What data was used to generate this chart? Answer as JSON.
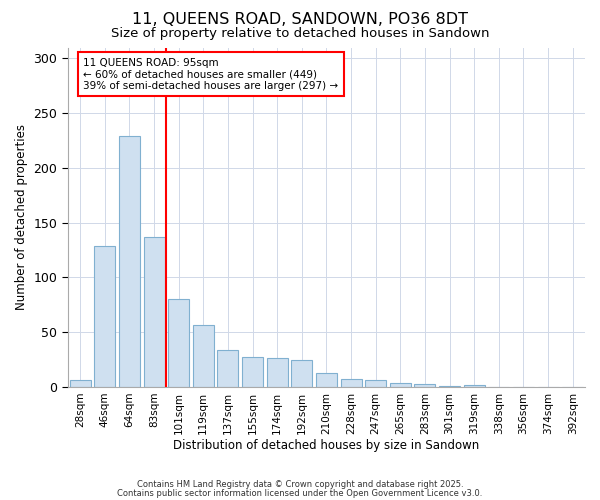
{
  "title1": "11, QUEENS ROAD, SANDOWN, PO36 8DT",
  "title2": "Size of property relative to detached houses in Sandown",
  "xlabel": "Distribution of detached houses by size in Sandown",
  "ylabel": "Number of detached properties",
  "bar_values": [
    6,
    129,
    229,
    137,
    80,
    57,
    34,
    27,
    26,
    25,
    13,
    7,
    6,
    4,
    3,
    1,
    2,
    0,
    0,
    0,
    0
  ],
  "bar_labels": [
    "28sqm",
    "46sqm",
    "64sqm",
    "83sqm",
    "101sqm",
    "119sqm",
    "137sqm",
    "155sqm",
    "174sqm",
    "192sqm",
    "210sqm",
    "228sqm",
    "247sqm",
    "265sqm",
    "283sqm",
    "301sqm",
    "319sqm",
    "338sqm",
    "356sqm",
    "374sqm",
    "392sqm"
  ],
  "bar_color": "#cfe0f0",
  "bar_edgecolor": "#80b0d0",
  "property_line_x": 4,
  "property_line_color": "red",
  "annotation_title": "11 QUEENS ROAD: 95sqm",
  "annotation_line1": "← 60% of detached houses are smaller (449)",
  "annotation_line2": "39% of semi-detached houses are larger (297) →",
  "ylim": [
    0,
    310
  ],
  "yticks": [
    0,
    50,
    100,
    150,
    200,
    250,
    300
  ],
  "grid_color": "#d0d8e8",
  "background_color": "#ffffff",
  "footer1": "Contains HM Land Registry data © Crown copyright and database right 2025.",
  "footer2": "Contains public sector information licensed under the Open Government Licence v3.0."
}
